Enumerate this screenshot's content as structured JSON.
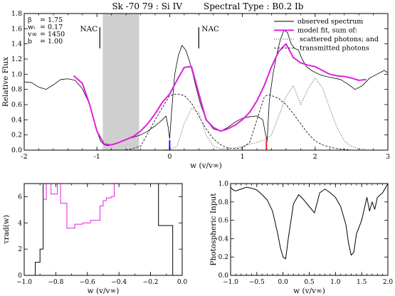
{
  "figure": {
    "title_left": "Sk -70 79 : Si IV",
    "title_right": "Spectral Type : B0.2 Ib"
  },
  "chart_data": [
    {
      "type": "line",
      "id": "main",
      "xlabel": "w (v/v∞)",
      "ylabel": "Relative Flux",
      "xlim": [
        -2,
        3
      ],
      "ylim": [
        0,
        1.8
      ],
      "xticks": [
        -2,
        -1,
        0,
        1,
        2,
        3
      ],
      "yticks": [
        0.0,
        0.2,
        0.4,
        0.6,
        0.8,
        1.0,
        1.2,
        1.4,
        1.6,
        1.8
      ],
      "ytick_labels": [
        "0.0",
        "0.2",
        "0.4",
        "0.6",
        "0.8",
        "1.0",
        "1.2",
        "1.4",
        "1.6",
        "1.8"
      ],
      "params": [
        {
          "symbol": "β",
          "value": "1.75"
        },
        {
          "symbol": "wₜ",
          "value": "0.17"
        },
        {
          "symbol": "v∞",
          "value": "1450"
        },
        {
          "symbol": "b",
          "value": "1.00"
        }
      ],
      "shaded_region": [
        -0.92,
        -0.42
      ],
      "nac_labels": [
        {
          "text": "NAC",
          "x": -0.96,
          "y_top": 1.62,
          "y_bottom": 1.34
        },
        {
          "text": "NAC",
          "x": 0.4,
          "y_top": 1.62,
          "y_bottom": 1.34
        }
      ],
      "markers": [
        {
          "x": 0.0,
          "color": "#1a1aff"
        },
        {
          "x": 1.33,
          "color": "#ff1a1a"
        }
      ],
      "legend": {
        "position": "top-right",
        "entries": [
          {
            "label": "observed spectrum",
            "style": "solid",
            "color": "#000000"
          },
          {
            "label": "model fit, sum of:",
            "style": "solid",
            "color": "#e020e0"
          },
          {
            "label": "scattered photons; and",
            "style": "dotted",
            "color": "#555555"
          },
          {
            "label": "transmitted photons",
            "style": "dashed",
            "color": "#000000"
          }
        ]
      },
      "series": [
        {
          "name": "observed spectrum",
          "color": "#000000",
          "x": [
            -2.0,
            -1.9,
            -1.8,
            -1.7,
            -1.6,
            -1.5,
            -1.4,
            -1.3,
            -1.2,
            -1.1,
            -1.05,
            -1.0,
            -0.95,
            -0.9,
            -0.85,
            -0.8,
            -0.75,
            -0.7,
            -0.65,
            -0.6,
            -0.5,
            -0.4,
            -0.3,
            -0.2,
            -0.1,
            -0.05,
            -0.02,
            0.0,
            0.03,
            0.07,
            0.12,
            0.17,
            0.22,
            0.27,
            0.32,
            0.37,
            0.42,
            0.47,
            0.52,
            0.6,
            0.7,
            0.8,
            0.9,
            1.0,
            1.1,
            1.2,
            1.28,
            1.32,
            1.34,
            1.37,
            1.42,
            1.47,
            1.52,
            1.57,
            1.62,
            1.67,
            1.72,
            1.77,
            1.82,
            1.88,
            1.95,
            2.05,
            2.15,
            2.25,
            2.35,
            2.45,
            2.55,
            2.65,
            2.75,
            2.85,
            2.95,
            3.0
          ],
          "y": [
            0.9,
            0.89,
            0.83,
            0.8,
            0.86,
            0.93,
            0.94,
            0.92,
            0.81,
            0.6,
            0.42,
            0.25,
            0.12,
            0.07,
            0.06,
            0.07,
            0.08,
            0.1,
            0.12,
            0.14,
            0.17,
            0.2,
            0.25,
            0.32,
            0.4,
            0.45,
            0.3,
            0.15,
            0.55,
            1.0,
            1.25,
            1.38,
            1.32,
            1.18,
            1.0,
            0.8,
            0.62,
            0.48,
            0.38,
            0.28,
            0.25,
            0.3,
            0.37,
            0.42,
            0.44,
            0.45,
            0.4,
            0.2,
            0.12,
            0.65,
            1.0,
            1.25,
            1.45,
            1.58,
            1.55,
            1.4,
            1.34,
            1.32,
            1.2,
            1.1,
            1.05,
            1.0,
            0.97,
            0.95,
            0.93,
            0.87,
            0.8,
            0.85,
            0.95,
            1.0,
            1.05,
            1.02
          ]
        },
        {
          "name": "model fit, sum of:",
          "color": "#e020e0",
          "x": [
            -1.32,
            -1.2,
            -1.1,
            -1.0,
            -0.9,
            -0.8,
            -0.7,
            -0.6,
            -0.5,
            -0.4,
            -0.3,
            -0.2,
            -0.1,
            0.0,
            0.1,
            0.2,
            0.3,
            0.4,
            0.5,
            0.6,
            0.7,
            0.8,
            0.9,
            1.0,
            1.1,
            1.2,
            1.3,
            1.4,
            1.5,
            1.6,
            1.7,
            1.8,
            1.9,
            2.0,
            2.1,
            2.2,
            2.3,
            2.4,
            2.5,
            2.6,
            2.7
          ],
          "y": [
            0.98,
            0.88,
            0.6,
            0.25,
            0.08,
            0.07,
            0.1,
            0.14,
            0.18,
            0.25,
            0.35,
            0.48,
            0.63,
            0.74,
            0.92,
            1.09,
            1.1,
            0.75,
            0.4,
            0.3,
            0.25,
            0.28,
            0.33,
            0.4,
            0.5,
            0.65,
            0.85,
            1.1,
            1.3,
            1.4,
            1.22,
            1.15,
            1.12,
            1.1,
            1.05,
            1.0,
            0.98,
            0.97,
            0.95,
            0.92,
            0.93
          ]
        },
        {
          "name": "scattered photons; and",
          "color": "#555555",
          "x": [
            -0.1,
            0.0,
            0.1,
            0.2,
            0.3,
            0.4,
            0.5,
            0.6,
            0.7,
            0.8,
            0.9,
            1.0,
            1.1,
            1.2,
            1.3,
            1.4,
            1.5,
            1.6,
            1.7,
            1.8,
            1.9,
            2.0,
            2.1,
            2.2,
            2.3,
            2.4,
            2.5,
            2.6,
            2.7
          ],
          "y": [
            0.0,
            0.01,
            0.05,
            0.35,
            0.55,
            0.5,
            0.2,
            0.05,
            0.02,
            0.02,
            0.03,
            0.05,
            0.08,
            0.1,
            0.14,
            0.2,
            0.45,
            0.7,
            0.85,
            0.6,
            0.8,
            0.95,
            0.82,
            0.55,
            0.3,
            0.12,
            0.05,
            0.02,
            0.01
          ]
        },
        {
          "name": "transmitted photons",
          "color": "#000000",
          "x": [
            -0.6,
            -0.4,
            -0.2,
            0.0,
            0.1,
            0.2,
            0.3,
            0.4,
            0.5,
            0.6,
            0.7,
            0.8,
            0.9,
            1.0,
            1.1,
            1.2,
            1.3,
            1.35,
            1.4,
            1.5,
            1.6,
            1.7,
            1.8,
            1.9,
            2.0,
            2.1,
            2.2,
            2.3,
            2.4,
            2.5
          ],
          "y": [
            0.0,
            0.05,
            0.4,
            0.72,
            0.74,
            0.72,
            0.62,
            0.45,
            0.28,
            0.15,
            0.07,
            0.03,
            0.02,
            0.03,
            0.1,
            0.4,
            0.7,
            0.73,
            0.72,
            0.68,
            0.6,
            0.48,
            0.35,
            0.22,
            0.12,
            0.07,
            0.04,
            0.02,
            0.01,
            0.0
          ]
        }
      ]
    },
    {
      "type": "line",
      "id": "tau",
      "xlabel": "w (v/v∞)",
      "ylabel": "τrad(w)",
      "xlim": [
        -1.0,
        0.0
      ],
      "ylim": [
        0,
        7
      ],
      "xticks": [
        -1.0,
        -0.8,
        -0.6,
        -0.4,
        -0.2,
        0.0
      ],
      "xtick_labels": [
        "−1.0",
        "−0.8",
        "−0.6",
        "−0.4",
        "−0.2",
        "0.0"
      ],
      "yticks": [
        0,
        2,
        4,
        6
      ],
      "ytick_labels": [
        "0",
        "2",
        "4",
        "6"
      ],
      "series": [
        {
          "name": "black step",
          "color": "#000000",
          "steps": [
            [
              -0.93,
              0
            ],
            [
              -0.93,
              1.0
            ],
            [
              -0.9,
              1.0
            ],
            [
              -0.9,
              2.0
            ],
            [
              -0.88,
              2.0
            ],
            [
              -0.88,
              7.0
            ]
          ],
          "steps2": [
            [
              -0.15,
              7.0
            ],
            [
              -0.15,
              3.8
            ],
            [
              -0.06,
              3.8
            ],
            [
              -0.06,
              0
            ]
          ]
        },
        {
          "name": "magenta step",
          "color": "#e020e0",
          "steps": [
            [
              -0.88,
              5.8
            ],
            [
              -0.86,
              5.8
            ],
            [
              -0.86,
              7.0
            ],
            [
              -0.83,
              7.0
            ],
            [
              -0.83,
              6.2
            ],
            [
              -0.79,
              6.2
            ],
            [
              -0.79,
              7.0
            ],
            [
              -0.77,
              7.0
            ],
            [
              -0.77,
              5.5
            ],
            [
              -0.73,
              5.5
            ],
            [
              -0.73,
              3.6
            ],
            [
              -0.68,
              3.6
            ],
            [
              -0.68,
              3.9
            ],
            [
              -0.63,
              3.9
            ],
            [
              -0.63,
              4.0
            ],
            [
              -0.58,
              4.0
            ],
            [
              -0.58,
              4.2
            ],
            [
              -0.52,
              4.2
            ],
            [
              -0.52,
              5.3
            ],
            [
              -0.5,
              5.3
            ],
            [
              -0.5,
              5.7
            ],
            [
              -0.48,
              5.7
            ],
            [
              -0.48,
              5.9
            ],
            [
              -0.45,
              5.9
            ],
            [
              -0.45,
              6.0
            ],
            [
              -0.43,
              6.0
            ],
            [
              -0.43,
              7.0
            ]
          ]
        }
      ]
    },
    {
      "type": "line",
      "id": "photo",
      "xlabel": "w (v/v∞)",
      "ylabel": "Photospheric Input",
      "xlim": [
        -1.0,
        2.0
      ],
      "ylim": [
        0,
        1.0
      ],
      "xticks": [
        -1.0,
        -0.5,
        0.0,
        0.5,
        1.0,
        1.5,
        2.0
      ],
      "xtick_labels": [
        "−1.0",
        "−0.5",
        "0.0",
        "0.5",
        "1.0",
        "1.5",
        "2.0"
      ],
      "yticks": [
        0.0,
        0.2,
        0.4,
        0.6,
        0.8,
        1.0
      ],
      "ytick_labels": [
        "0.0",
        "0.2",
        "0.4",
        "0.6",
        "0.8",
        "1.0"
      ],
      "series": [
        {
          "name": "photospheric input",
          "color": "#000000",
          "x": [
            -1.0,
            -0.95,
            -0.9,
            -0.85,
            -0.8,
            -0.7,
            -0.6,
            -0.5,
            -0.4,
            -0.3,
            -0.2,
            -0.1,
            -0.05,
            0.0,
            0.05,
            0.1,
            0.2,
            0.3,
            0.4,
            0.5,
            0.6,
            0.7,
            0.8,
            0.9,
            1.0,
            1.1,
            1.2,
            1.25,
            1.3,
            1.35,
            1.4,
            1.5,
            1.6,
            1.65,
            1.7,
            1.75,
            1.8,
            1.9,
            2.0
          ],
          "y": [
            0.96,
            0.93,
            0.92,
            0.93,
            0.94,
            0.96,
            0.95,
            0.93,
            0.88,
            0.82,
            0.7,
            0.45,
            0.3,
            0.2,
            0.18,
            0.4,
            0.78,
            0.88,
            0.82,
            0.75,
            0.68,
            0.9,
            0.94,
            0.9,
            0.85,
            0.75,
            0.55,
            0.35,
            0.22,
            0.25,
            0.45,
            0.6,
            0.85,
            0.7,
            0.8,
            0.72,
            0.85,
            0.9,
            1.0
          ]
        }
      ]
    }
  ]
}
